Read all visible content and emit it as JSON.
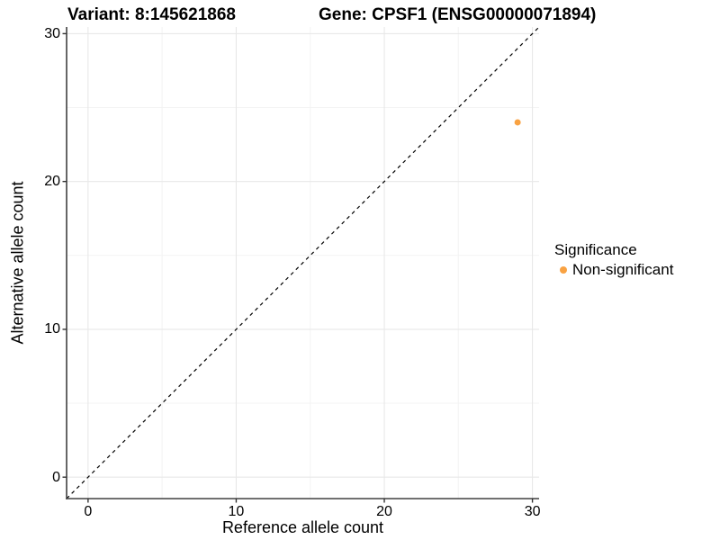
{
  "chart_data": {
    "type": "scatter",
    "titles": [
      "Variant: 8:145621868",
      "Gene: CPSF1 (ENSG00000071894)"
    ],
    "xlabel": "Reference allele count",
    "ylabel": "Alternative allele count",
    "xlim": [
      -1.45,
      30.45
    ],
    "ylim": [
      -1.45,
      30.45
    ],
    "xticks": [
      0,
      10,
      20,
      30
    ],
    "yticks": [
      0,
      10,
      20,
      30
    ],
    "minor_xticks": [
      5,
      15,
      25
    ],
    "minor_yticks": [
      5,
      15,
      25
    ],
    "grid": true,
    "identity_line": {
      "slope": 1,
      "intercept": 0,
      "linetype": "dashed",
      "color": "#000000"
    },
    "series": [
      {
        "name": "Non-significant",
        "color": "#F9A242",
        "points": [
          {
            "x": 29,
            "y": 24
          }
        ]
      }
    ],
    "legend": {
      "position": "right",
      "title": "Significance",
      "items": [
        {
          "label": "Non-significant",
          "color": "#F9A242",
          "marker": "circle"
        }
      ]
    }
  },
  "colors": {
    "background": "#FFFFFF",
    "axis_line": "#404040",
    "tick_mark": "#333333",
    "grid_major": "#E8E8E8",
    "grid_minor": "#F3F3F3",
    "text": "#000000",
    "point_nonsignificant": "#F9A242"
  }
}
